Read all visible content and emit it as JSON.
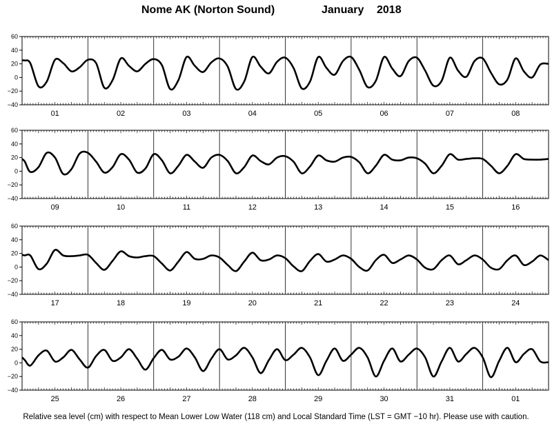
{
  "header": {
    "station": "Nome AK (Norton Sound)",
    "month": "January",
    "year": "2018"
  },
  "footer": {
    "note": "Relative sea level (cm) with respect to Mean Lower Low Water (118 cm) and Local Standard Time (LST = GMT −10 hr). Please use with caution."
  },
  "chart_data": {
    "type": "line",
    "units": "cm",
    "ylim": [
      -40,
      60
    ],
    "yticks": [
      "60",
      "40",
      "20",
      "0",
      "−20",
      "−40"
    ],
    "grid": "vertical lines at day boundaries",
    "panels": [
      {
        "days": [
          "01",
          "02",
          "03",
          "04",
          "05",
          "06",
          "07",
          "08"
        ],
        "series": [
          {
            "x_hours": [
              0,
              1,
              3,
              6,
              9,
              12,
              15,
              18,
              21,
              24,
              27,
              30,
              33,
              36,
              39,
              42,
              45,
              48,
              51,
              54,
              57,
              60,
              63,
              66,
              69,
              72,
              75,
              78,
              81,
              84,
              87,
              90,
              93,
              96,
              99,
              102,
              105,
              108,
              111,
              114,
              117,
              120,
              123,
              126,
              129,
              132,
              135,
              138,
              141,
              144,
              147,
              150,
              153,
              156,
              159,
              162,
              165,
              168,
              171,
              174,
              177,
              180,
              183,
              186,
              189,
              192
            ],
            "values": [
              25,
              25,
              21,
              -13,
              -6,
              26,
              21,
              9,
              15,
              26,
              21,
              -15,
              -4,
              28,
              17,
              9,
              20,
              27,
              18,
              -17,
              -4,
              30,
              17,
              8,
              22,
              28,
              16,
              -17,
              -6,
              30,
              16,
              6,
              23,
              29,
              14,
              -16,
              -6,
              30,
              14,
              4,
              24,
              30,
              11,
              -14,
              -5,
              30,
              13,
              2,
              24,
              29,
              10,
              -12,
              -5,
              29,
              10,
              1,
              24,
              28,
              7,
              -10,
              -3,
              28,
              9,
              0,
              19,
              20
            ]
          }
        ]
      },
      {
        "days": [
          "09",
          "10",
          "11",
          "12",
          "13",
          "14",
          "15",
          "16"
        ],
        "series": [
          {
            "x_hours": [
              0,
              1,
              3,
              6,
              9,
              12,
              15,
              18,
              21,
              24,
              27,
              30,
              33,
              36,
              39,
              42,
              45,
              48,
              51,
              54,
              57,
              60,
              63,
              66,
              69,
              72,
              75,
              78,
              81,
              84,
              87,
              90,
              93,
              96,
              99,
              102,
              105,
              108,
              111,
              114,
              117,
              120,
              123,
              126,
              129,
              132,
              135,
              138,
              141,
              144,
              147,
              150,
              153,
              156,
              159,
              162,
              165,
              168,
              171,
              174,
              177,
              180,
              183,
              186,
              189,
              192
            ],
            "values": [
              18,
              14,
              -1,
              6,
              27,
              20,
              -4,
              3,
              26,
              27,
              14,
              -2,
              6,
              25,
              17,
              -2,
              4,
              25,
              16,
              -3,
              8,
              24,
              14,
              5,
              20,
              24,
              15,
              -3,
              6,
              23,
              15,
              10,
              20,
              22,
              14,
              -3,
              7,
              23,
              16,
              14,
              20,
              21,
              13,
              -3,
              8,
              24,
              17,
              16,
              20,
              19,
              11,
              -3,
              8,
              25,
              17,
              18,
              19,
              18,
              8,
              -3,
              8,
              25,
              18,
              17,
              17,
              18
            ]
          }
        ]
      },
      {
        "days": [
          "17",
          "18",
          "19",
          "20",
          "21",
          "22",
          "23",
          "24"
        ],
        "series": [
          {
            "x_hours": [
              0,
              1,
              3,
              6,
              9,
              12,
              15,
              18,
              21,
              24,
              27,
              30,
              33,
              36,
              39,
              42,
              45,
              48,
              51,
              54,
              57,
              60,
              63,
              66,
              69,
              72,
              75,
              78,
              81,
              84,
              87,
              90,
              93,
              96,
              99,
              102,
              105,
              108,
              111,
              114,
              117,
              120,
              123,
              126,
              129,
              132,
              135,
              138,
              141,
              144,
              147,
              150,
              153,
              156,
              159,
              162,
              165,
              168,
              171,
              174,
              177,
              180,
              183,
              186,
              189,
              192
            ],
            "values": [
              18,
              17,
              17,
              -3,
              5,
              25,
              17,
              16,
              17,
              18,
              6,
              -4,
              9,
              23,
              16,
              14,
              16,
              16,
              5,
              -5,
              8,
              22,
              12,
              12,
              17,
              14,
              3,
              -6,
              8,
              21,
              10,
              11,
              17,
              13,
              1,
              -6,
              9,
              19,
              8,
              11,
              17,
              12,
              0,
              -5,
              10,
              18,
              6,
              11,
              17,
              11,
              -1,
              -3,
              10,
              17,
              4,
              10,
              17,
              11,
              -1,
              -3,
              10,
              17,
              3,
              8,
              17,
              10
            ]
          }
        ]
      },
      {
        "days": [
          "25",
          "26",
          "27",
          "28",
          "29",
          "30",
          "31",
          "01"
        ],
        "series": [
          {
            "x_hours": [
              0,
              1,
              3,
              6,
              9,
              12,
              15,
              18,
              21,
              24,
              27,
              30,
              33,
              36,
              39,
              42,
              45,
              48,
              51,
              54,
              57,
              60,
              63,
              66,
              69,
              72,
              75,
              78,
              81,
              84,
              87,
              90,
              93,
              96,
              99,
              102,
              105,
              108,
              111,
              114,
              117,
              120,
              123,
              126,
              129,
              132,
              135,
              138,
              141,
              144,
              147,
              150,
              153,
              156,
              159,
              162,
              165,
              168,
              171,
              174,
              177,
              180,
              183,
              186,
              189,
              192
            ],
            "values": [
              8,
              4,
              -4,
              11,
              18,
              2,
              8,
              19,
              5,
              -7,
              10,
              19,
              3,
              8,
              20,
              6,
              -10,
              7,
              19,
              5,
              9,
              21,
              8,
              -12,
              6,
              20,
              5,
              11,
              22,
              8,
              -15,
              4,
              20,
              4,
              12,
              22,
              8,
              -18,
              3,
              21,
              3,
              12,
              22,
              8,
              -20,
              3,
              21,
              2,
              12,
              21,
              8,
              -20,
              2,
              22,
              2,
              13,
              22,
              8,
              -21,
              3,
              22,
              1,
              13,
              20,
              2,
              1
            ]
          }
        ]
      }
    ]
  }
}
